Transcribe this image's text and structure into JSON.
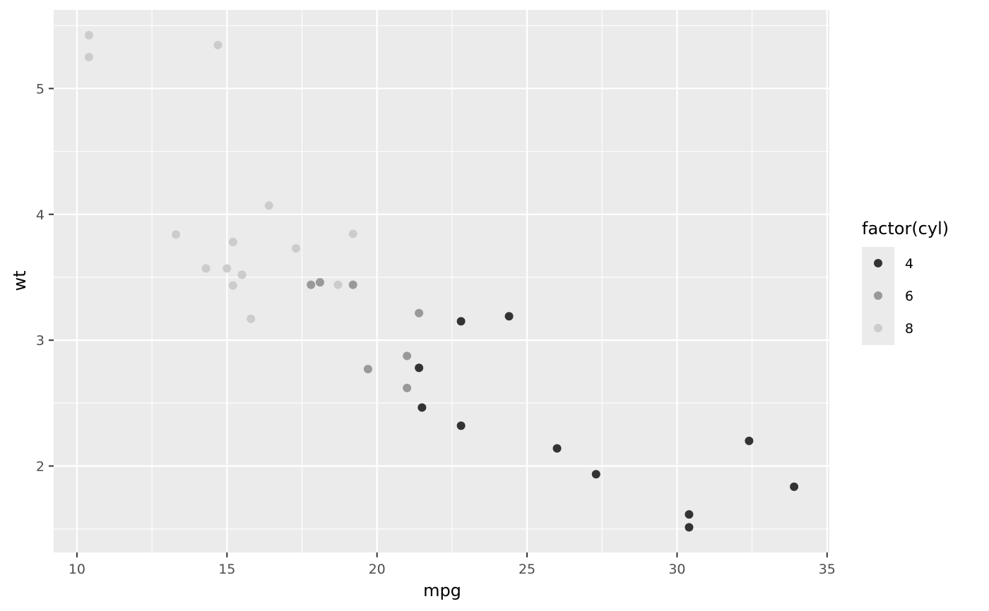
{
  "chart_data": {
    "type": "scatter",
    "xlabel": "mpg",
    "ylabel": "wt",
    "xlim": [
      9.225,
      35.075
    ],
    "ylim": [
      1.31315,
      5.62485
    ],
    "x_ticks": [
      10,
      15,
      20,
      25,
      30,
      35
    ],
    "y_ticks": [
      2,
      3,
      4,
      5
    ],
    "grid": true,
    "legend": {
      "title": "factor(cyl)",
      "placement": "right",
      "entries": [
        {
          "label": "4",
          "color": "#333333"
        },
        {
          "label": "6",
          "color": "#999999"
        },
        {
          "label": "8",
          "color": "#cccccc"
        }
      ]
    },
    "series": [
      {
        "name": "4",
        "color": "#333333",
        "points": [
          [
            22.8,
            2.32
          ],
          [
            24.4,
            3.19
          ],
          [
            22.8,
            3.15
          ],
          [
            32.4,
            2.2
          ],
          [
            30.4,
            1.615
          ],
          [
            33.9,
            1.835
          ],
          [
            21.5,
            2.465
          ],
          [
            27.3,
            1.935
          ],
          [
            26.0,
            2.14
          ],
          [
            30.4,
            1.513
          ],
          [
            21.4,
            2.78
          ]
        ]
      },
      {
        "name": "6",
        "color": "#999999",
        "points": [
          [
            21.0,
            2.62
          ],
          [
            21.0,
            2.875
          ],
          [
            21.4,
            3.215
          ],
          [
            18.1,
            3.46
          ],
          [
            19.2,
            3.44
          ],
          [
            17.8,
            3.44
          ],
          [
            19.7,
            2.77
          ]
        ]
      },
      {
        "name": "8",
        "color": "#cccccc",
        "points": [
          [
            18.7,
            3.44
          ],
          [
            14.3,
            3.57
          ],
          [
            16.4,
            4.07
          ],
          [
            17.3,
            3.73
          ],
          [
            15.2,
            3.78
          ],
          [
            10.4,
            5.25
          ],
          [
            10.4,
            5.424
          ],
          [
            14.7,
            5.345
          ],
          [
            15.5,
            3.52
          ],
          [
            15.2,
            3.435
          ],
          [
            13.3,
            3.84
          ],
          [
            19.2,
            3.845
          ],
          [
            15.8,
            3.17
          ],
          [
            15.0,
            3.57
          ]
        ]
      }
    ]
  }
}
